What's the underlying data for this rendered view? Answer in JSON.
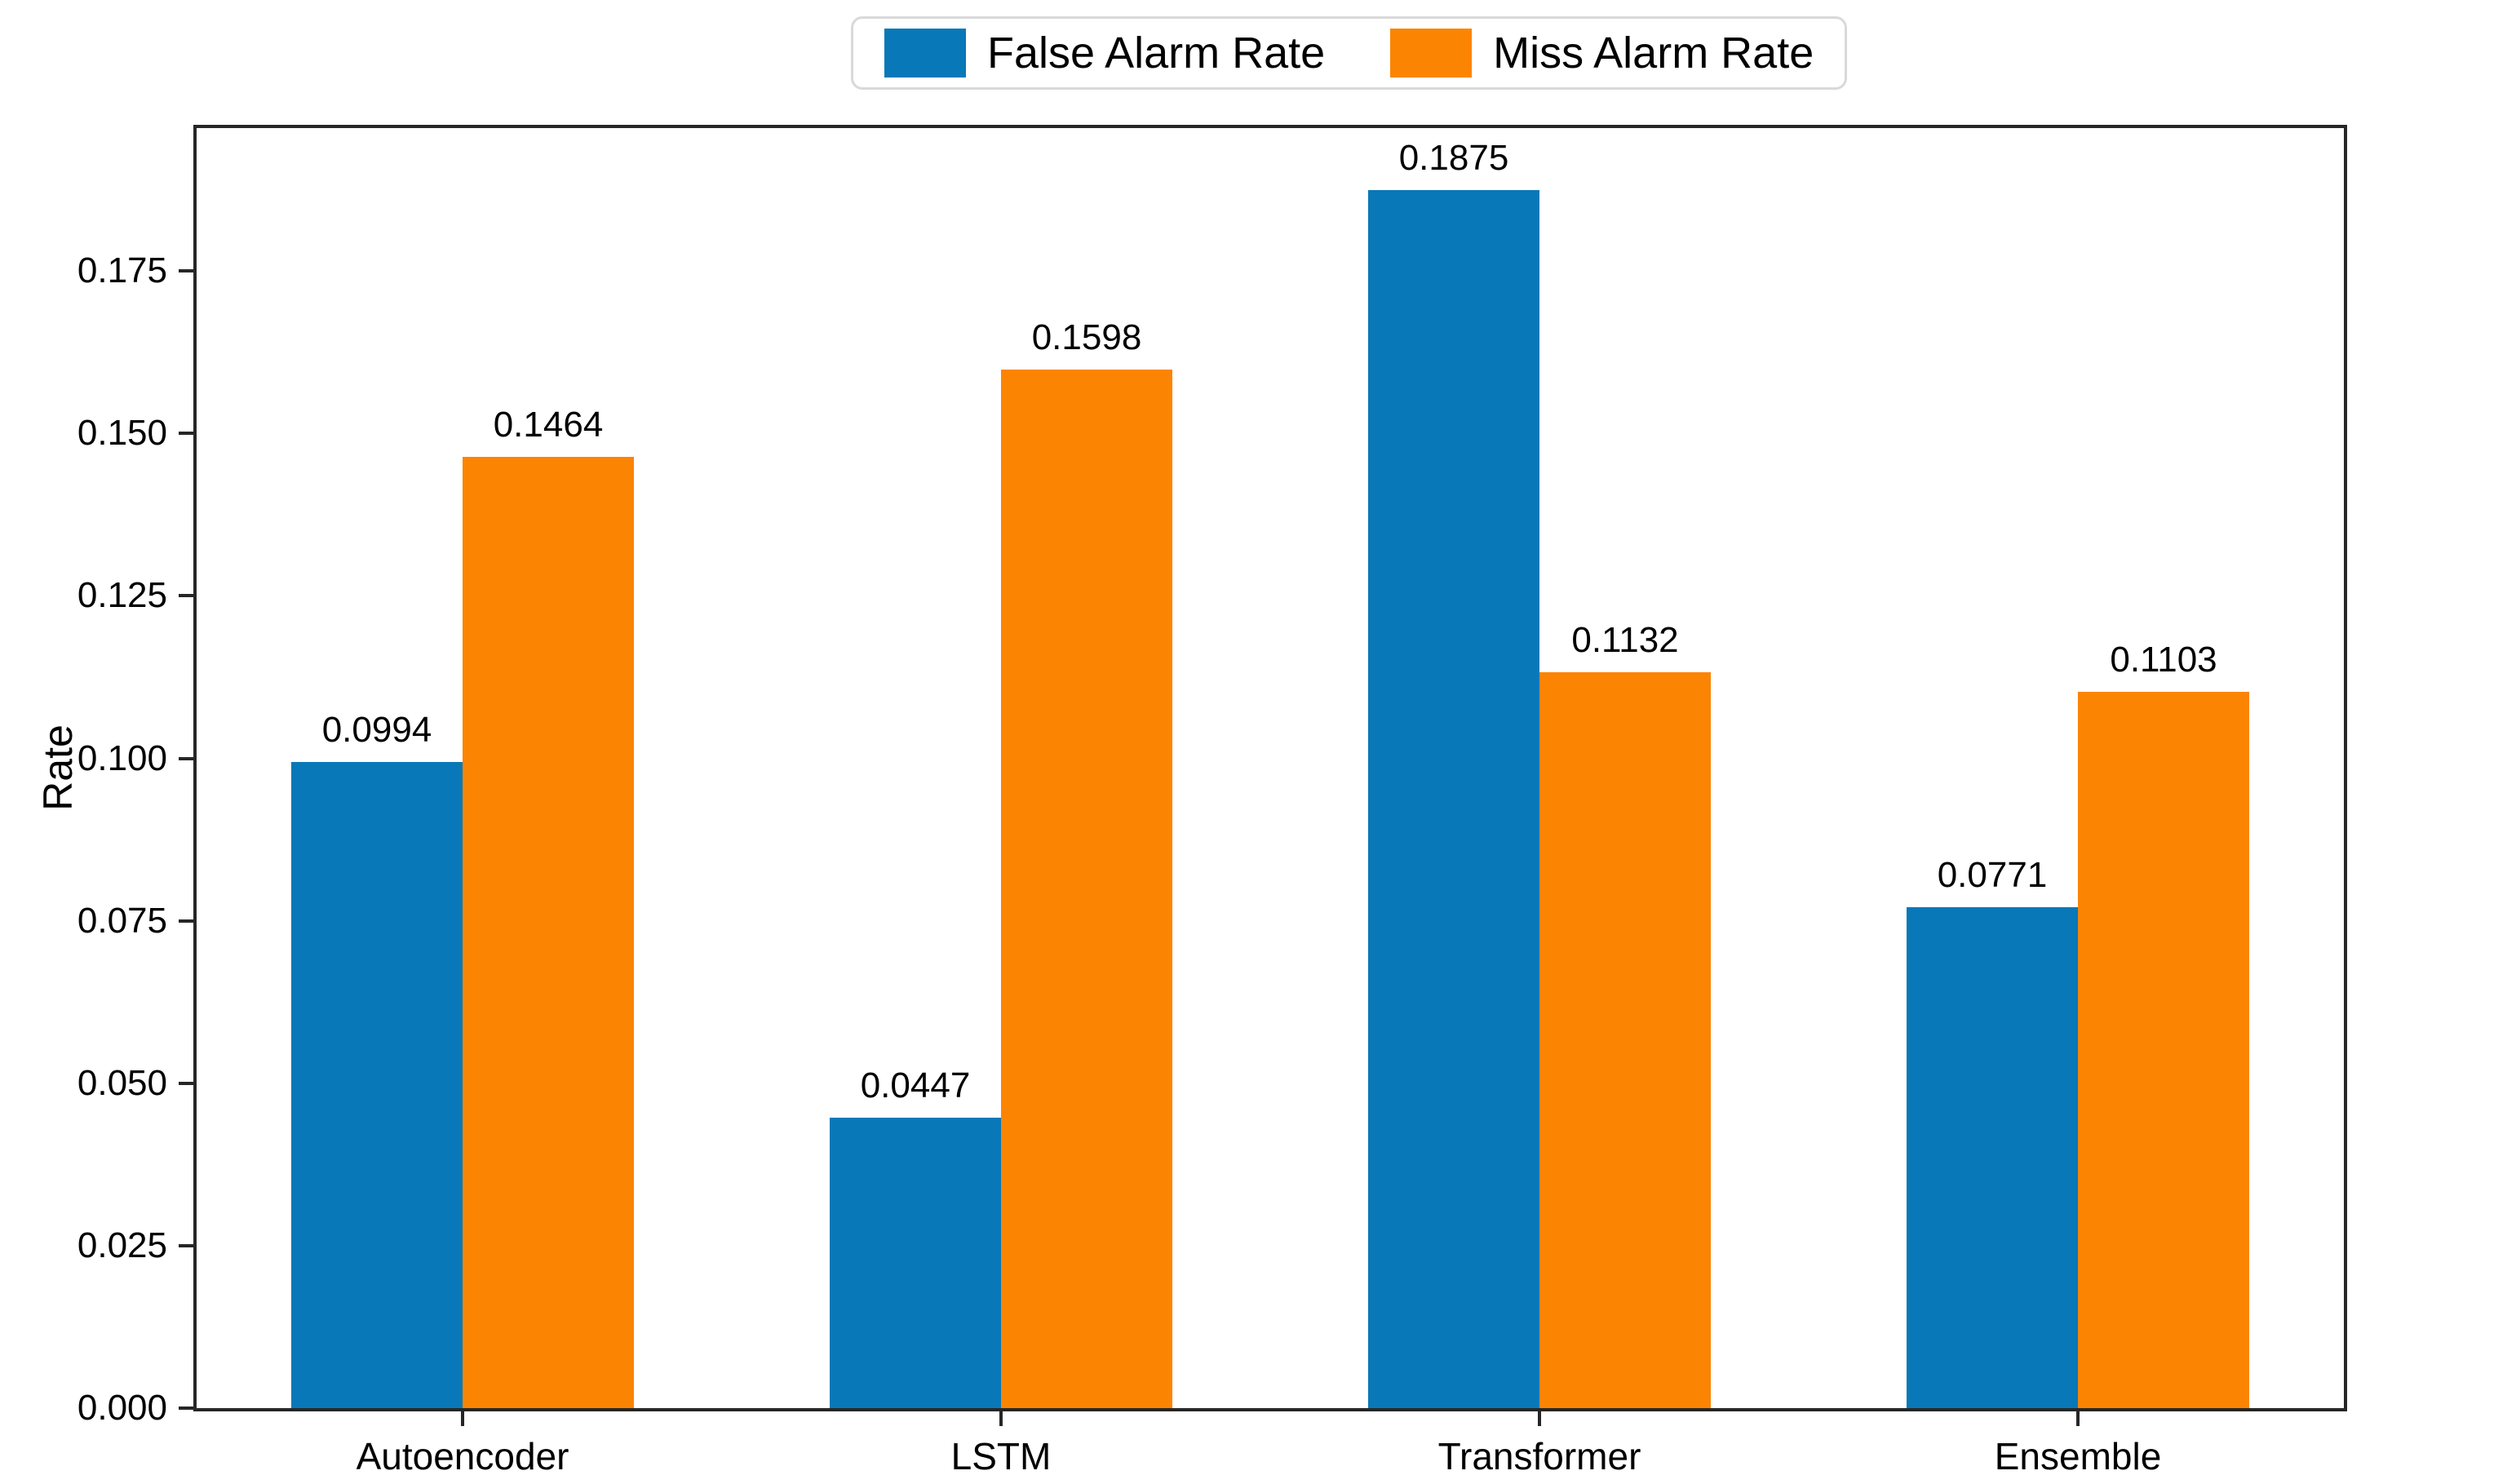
{
  "figure": {
    "background": "#ffffff"
  },
  "legend": {
    "items": [
      {
        "label": "False Alarm Rate",
        "color": "#0878b8"
      },
      {
        "label": "Miss Alarm Rate",
        "color": "#fc8403"
      }
    ],
    "border_color": "#d9d9d9",
    "position": "top-center-above-plot"
  },
  "axes": {
    "ylabel": "Rate",
    "spine_color": "#262626",
    "text_color": "#000000"
  },
  "chart_data": {
    "type": "bar",
    "title": "",
    "xlabel": "",
    "ylabel": "Rate",
    "categories": [
      "Autoencoder",
      "LSTM",
      "Transformer",
      "Ensemble"
    ],
    "series": [
      {
        "name": "False Alarm Rate",
        "color": "#0878b8",
        "values": [
          0.0994,
          0.0447,
          0.1875,
          0.0771
        ],
        "labels": [
          "0.0994",
          "0.0447",
          "0.1875",
          "0.0771"
        ]
      },
      {
        "name": "Miss Alarm Rate",
        "color": "#fc8403",
        "values": [
          0.1464,
          0.1598,
          0.1132,
          0.1103
        ],
        "labels": [
          "0.1464",
          "0.1598",
          "0.1132",
          "0.1103"
        ]
      }
    ],
    "ylim": [
      0,
      0.197
    ],
    "yticks": [
      "0.000",
      "0.025",
      "0.050",
      "0.075",
      "0.100",
      "0.125",
      "0.150",
      "0.175"
    ],
    "ytick_step": 0.025,
    "grid": false,
    "bar_value_labels": true,
    "legend_position": "upper center"
  }
}
